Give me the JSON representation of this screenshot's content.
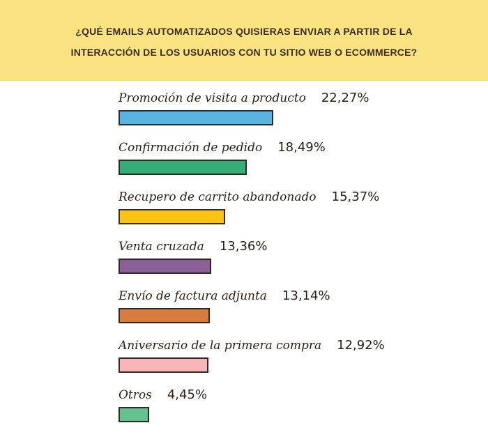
{
  "header": {
    "line1": "¿QUÉ EMAILS AUTOMATIZADOS QUISIERAS ENVIAR A PARTIR DE LA",
    "line2": "INTERACCIÓN DE LOS USUARIOS CON TU SITIO WEB O ECOMMERCE?",
    "background_color": "#fbe381"
  },
  "chart_data": {
    "type": "bar",
    "orientation": "horizontal",
    "title": "¿QUÉ EMAILS AUTOMATIZADOS QUISIERAS ENVIAR A PARTIR DE LA INTERACCIÓN DE LOS USUARIOS CON TU SITIO WEB O ECOMMERCE?",
    "categories": [
      "Promoción de visita a producto",
      "Confirmación de pedido",
      "Recupero de carrito abandonado",
      "Venta cruzada",
      "Envío de factura adjunta",
      "Aniversario de la primera compra",
      "Otros"
    ],
    "values": [
      22.27,
      18.49,
      15.37,
      13.36,
      13.14,
      12.92,
      4.45
    ],
    "value_labels": [
      "22,27%",
      "18,49%",
      "15,37%",
      "13,36%",
      "13,14%",
      "12,92%",
      "4,45%"
    ],
    "colors": [
      "#5ab4e2",
      "#34ad77",
      "#fdc312",
      "#8b6096",
      "#d77b3e",
      "#f9b5b8",
      "#66c18f"
    ],
    "unit": "%",
    "grid": false,
    "legend": "none"
  }
}
